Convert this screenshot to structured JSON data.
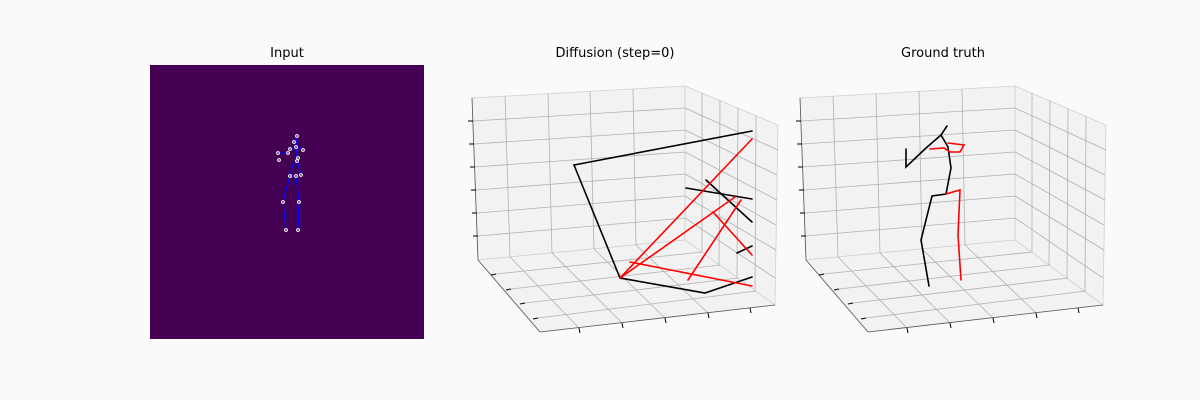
{
  "panels": [
    {
      "title": "Input"
    },
    {
      "title": "Diffusion (step=0)"
    },
    {
      "title": "Ground truth"
    }
  ],
  "colors": {
    "background": "#fafafa",
    "input_image": "#440154",
    "keypoint": "#ffffff",
    "bone_2d": "#0000ff",
    "limb_right": "#ff0000",
    "limb_left": "#000000",
    "grid": "#b0b0b0"
  }
}
